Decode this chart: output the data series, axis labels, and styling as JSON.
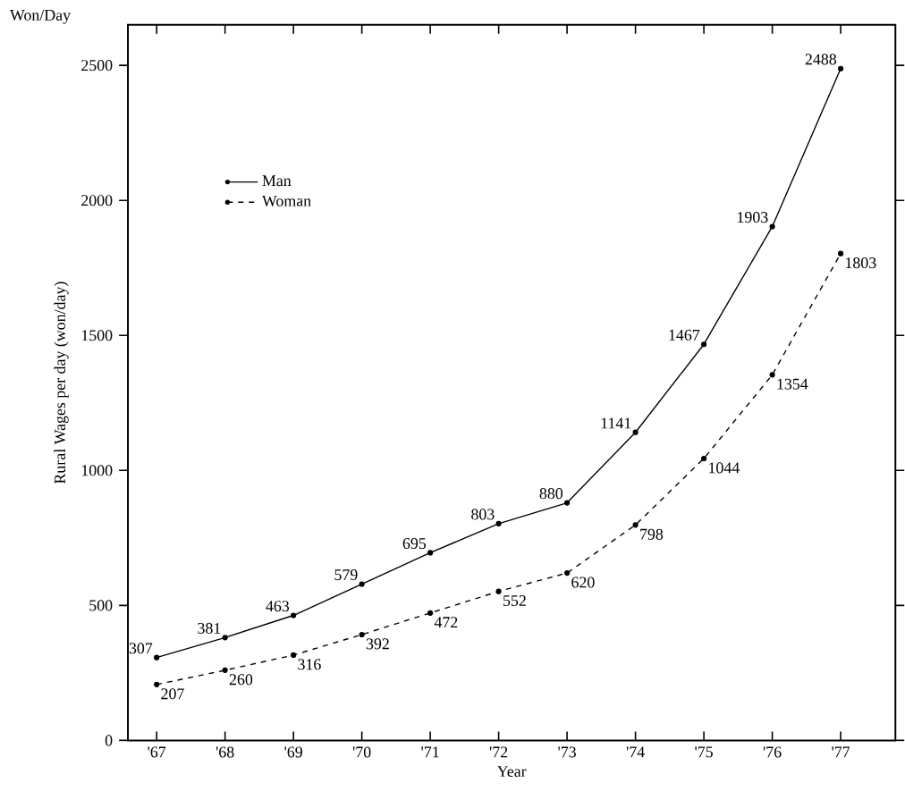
{
  "chart_data": {
    "type": "line",
    "xlabel": "Year",
    "ylabel": "Rural Wages per day (won/day)",
    "annotations": [
      "Won/Day"
    ],
    "categories": [
      "'67",
      "'68",
      "'69",
      "'70",
      "'71",
      "'72",
      "'73",
      "'74",
      "'75",
      "'76",
      "'77"
    ],
    "series": [
      {
        "name": "Man",
        "color": "#000000",
        "line_style": "solid",
        "values": [
          307,
          381,
          463,
          579,
          695,
          803,
          880,
          1141,
          1467,
          1903,
          2488
        ]
      },
      {
        "name": "Woman",
        "color": "#000000",
        "line_style": "dashed",
        "values": [
          207,
          260,
          316,
          392,
          472,
          552,
          620,
          798,
          1044,
          1354,
          1803
        ]
      }
    ],
    "ylim": [
      0,
      2650
    ],
    "yticks": [
      0,
      500,
      1000,
      1500,
      2000,
      2500
    ],
    "marker": "circle",
    "data_labels": true,
    "legend": "top left",
    "grid": false
  }
}
